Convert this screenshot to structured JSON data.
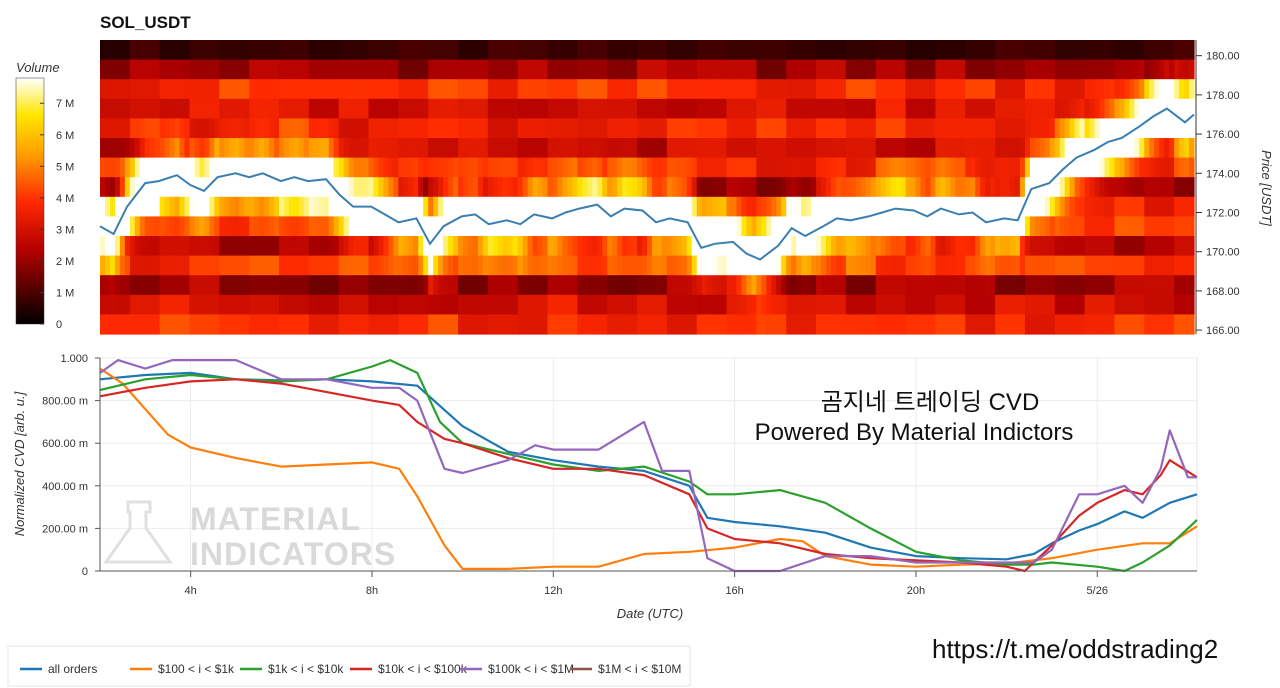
{
  "chart_data": [
    {
      "type": "heatmap",
      "title": "SOL_USDT",
      "colorbar": {
        "title": "Volume",
        "ticks": [
          "0",
          "1 M",
          "2 M",
          "3 M",
          "4 M",
          "5 M",
          "6 M",
          "7 M"
        ],
        "range": [
          0,
          7800000
        ]
      },
      "y_axis": {
        "label": "Price [USDT]",
        "range": [
          165.8,
          180.8
        ],
        "ticks": [
          "166.00",
          "168.00",
          "170.00",
          "172.00",
          "174.00",
          "176.00",
          "178.00",
          "180.00"
        ]
      },
      "x_range_hours": [
        2.0,
        26.2
      ],
      "price_series_name": "Price",
      "price_color": "#3a7fb0",
      "price_line": [
        [
          2.0,
          171.3
        ],
        [
          2.3,
          170.9
        ],
        [
          2.6,
          172.3
        ],
        [
          3.0,
          173.5
        ],
        [
          3.3,
          173.6
        ],
        [
          3.7,
          173.9
        ],
        [
          4.0,
          173.4
        ],
        [
          4.3,
          173.1
        ],
        [
          4.6,
          173.8
        ],
        [
          5.0,
          174.0
        ],
        [
          5.3,
          173.8
        ],
        [
          5.6,
          174.0
        ],
        [
          6.0,
          173.6
        ],
        [
          6.3,
          173.8
        ],
        [
          6.6,
          173.6
        ],
        [
          7.0,
          173.7
        ],
        [
          7.3,
          172.9
        ],
        [
          7.6,
          172.3
        ],
        [
          8.0,
          172.3
        ],
        [
          8.3,
          171.9
        ],
        [
          8.6,
          171.5
        ],
        [
          9.0,
          171.7
        ],
        [
          9.3,
          170.4
        ],
        [
          9.6,
          171.3
        ],
        [
          10.0,
          171.8
        ],
        [
          10.3,
          171.9
        ],
        [
          10.6,
          171.4
        ],
        [
          11.0,
          171.6
        ],
        [
          11.3,
          171.4
        ],
        [
          11.6,
          171.9
        ],
        [
          12.0,
          171.7
        ],
        [
          12.3,
          172.0
        ],
        [
          12.6,
          172.2
        ],
        [
          13.0,
          172.4
        ],
        [
          13.3,
          171.8
        ],
        [
          13.6,
          172.2
        ],
        [
          14.0,
          172.1
        ],
        [
          14.3,
          171.5
        ],
        [
          14.6,
          171.7
        ],
        [
          15.0,
          171.5
        ],
        [
          15.3,
          170.2
        ],
        [
          15.6,
          170.4
        ],
        [
          16.0,
          170.5
        ],
        [
          16.3,
          169.9
        ],
        [
          16.6,
          169.6
        ],
        [
          17.0,
          170.3
        ],
        [
          17.3,
          171.2
        ],
        [
          17.6,
          170.8
        ],
        [
          18.0,
          171.3
        ],
        [
          18.3,
          171.7
        ],
        [
          18.6,
          171.6
        ],
        [
          19.0,
          171.8
        ],
        [
          19.3,
          172.0
        ],
        [
          19.6,
          172.2
        ],
        [
          20.0,
          172.1
        ],
        [
          20.3,
          171.8
        ],
        [
          20.6,
          172.2
        ],
        [
          21.0,
          171.9
        ],
        [
          21.3,
          172.0
        ],
        [
          21.6,
          171.5
        ],
        [
          22.0,
          171.7
        ],
        [
          22.3,
          171.6
        ],
        [
          22.6,
          173.2
        ],
        [
          23.0,
          173.5
        ],
        [
          23.3,
          174.2
        ],
        [
          23.6,
          174.8
        ],
        [
          24.0,
          175.2
        ],
        [
          24.3,
          175.6
        ],
        [
          24.6,
          175.8
        ],
        [
          25.0,
          176.4
        ],
        [
          25.3,
          176.9
        ],
        [
          25.6,
          177.3
        ],
        [
          26.0,
          176.6
        ],
        [
          26.2,
          177.0
        ]
      ]
    },
    {
      "type": "line",
      "xlabel": "Date (UTC)",
      "ylabel": "Normalized CVD [arb. u.]",
      "ylim": [
        0,
        1000
      ],
      "y_ticks": [
        "0",
        "200.00 m",
        "400.00 m",
        "600.00 m",
        "800.00 m",
        "1.000"
      ],
      "x_ticks": [
        {
          "hour": 4,
          "label": "4h"
        },
        {
          "hour": 8,
          "label": "8h"
        },
        {
          "hour": 12,
          "label": "12h"
        },
        {
          "hour": 16,
          "label": "16h"
        },
        {
          "hour": 20,
          "label": "20h"
        },
        {
          "hour": 24,
          "label": "5/26"
        }
      ],
      "x_range_hours": [
        2.0,
        26.2
      ],
      "series": [
        {
          "name": "all orders",
          "color": "#1f77b4",
          "points": [
            [
              2.0,
              900
            ],
            [
              3.0,
              920
            ],
            [
              4.0,
              930
            ],
            [
              5.0,
              900
            ],
            [
              6.0,
              895
            ],
            [
              7.0,
              900
            ],
            [
              8.0,
              890
            ],
            [
              9.0,
              870
            ],
            [
              10.0,
              680
            ],
            [
              11.0,
              560
            ],
            [
              12.0,
              520
            ],
            [
              13.0,
              490
            ],
            [
              14.0,
              470
            ],
            [
              15.0,
              400
            ],
            [
              15.4,
              250
            ],
            [
              16.0,
              230
            ],
            [
              17.0,
              210
            ],
            [
              18.0,
              180
            ],
            [
              19.0,
              110
            ],
            [
              20.0,
              70
            ],
            [
              21.0,
              60
            ],
            [
              22.0,
              55
            ],
            [
              22.6,
              80
            ],
            [
              23.0,
              130
            ],
            [
              23.6,
              190
            ],
            [
              24.0,
              220
            ],
            [
              24.6,
              280
            ],
            [
              25.0,
              250
            ],
            [
              25.6,
              320
            ],
            [
              26.2,
              360
            ]
          ]
        },
        {
          "name": "$100 < i < $1k",
          "color": "#ff7f0e",
          "points": [
            [
              2.0,
              950
            ],
            [
              2.5,
              880
            ],
            [
              3.0,
              760
            ],
            [
              3.5,
              640
            ],
            [
              4.0,
              580
            ],
            [
              5.0,
              530
            ],
            [
              6.0,
              490
            ],
            [
              7.0,
              500
            ],
            [
              8.0,
              510
            ],
            [
              8.6,
              480
            ],
            [
              9.0,
              350
            ],
            [
              9.6,
              120
            ],
            [
              10.0,
              10
            ],
            [
              11.0,
              10
            ],
            [
              12.0,
              20
            ],
            [
              13.0,
              20
            ],
            [
              14.0,
              80
            ],
            [
              15.0,
              90
            ],
            [
              16.0,
              110
            ],
            [
              17.0,
              150
            ],
            [
              17.5,
              140
            ],
            [
              18.0,
              70
            ],
            [
              19.0,
              30
            ],
            [
              20.0,
              20
            ],
            [
              21.0,
              30
            ],
            [
              22.0,
              35
            ],
            [
              23.0,
              60
            ],
            [
              24.0,
              100
            ],
            [
              25.0,
              130
            ],
            [
              25.6,
              130
            ],
            [
              26.2,
              210
            ]
          ]
        },
        {
          "name": "$1k < i < $10k",
          "color": "#2ca02c",
          "points": [
            [
              2.0,
              850
            ],
            [
              3.0,
              900
            ],
            [
              4.0,
              920
            ],
            [
              5.0,
              900
            ],
            [
              6.0,
              890
            ],
            [
              7.0,
              900
            ],
            [
              8.0,
              960
            ],
            [
              8.4,
              990
            ],
            [
              9.0,
              930
            ],
            [
              9.5,
              700
            ],
            [
              10.0,
              600
            ],
            [
              11.0,
              550
            ],
            [
              12.0,
              500
            ],
            [
              13.0,
              470
            ],
            [
              14.0,
              490
            ],
            [
              15.0,
              420
            ],
            [
              15.4,
              360
            ],
            [
              16.0,
              360
            ],
            [
              17.0,
              380
            ],
            [
              18.0,
              320
            ],
            [
              19.0,
              200
            ],
            [
              20.0,
              90
            ],
            [
              21.0,
              50
            ],
            [
              22.0,
              30
            ],
            [
              22.6,
              30
            ],
            [
              23.0,
              40
            ],
            [
              24.0,
              20
            ],
            [
              24.6,
              0
            ],
            [
              25.0,
              40
            ],
            [
              25.6,
              120
            ],
            [
              26.2,
              240
            ]
          ]
        },
        {
          "name": "$10k < i < $100k",
          "color": "#d62728",
          "points": [
            [
              2.0,
              820
            ],
            [
              3.0,
              860
            ],
            [
              4.0,
              890
            ],
            [
              5.0,
              900
            ],
            [
              6.0,
              880
            ],
            [
              7.0,
              840
            ],
            [
              8.0,
              800
            ],
            [
              8.6,
              780
            ],
            [
              9.0,
              700
            ],
            [
              9.6,
              620
            ],
            [
              10.0,
              600
            ],
            [
              11.0,
              530
            ],
            [
              12.0,
              480
            ],
            [
              13.0,
              480
            ],
            [
              14.0,
              450
            ],
            [
              15.0,
              360
            ],
            [
              15.4,
              200
            ],
            [
              16.0,
              150
            ],
            [
              17.0,
              130
            ],
            [
              18.0,
              80
            ],
            [
              19.0,
              60
            ],
            [
              20.0,
              50
            ],
            [
              21.0,
              40
            ],
            [
              22.0,
              20
            ],
            [
              22.4,
              0
            ],
            [
              23.0,
              120
            ],
            [
              23.6,
              260
            ],
            [
              24.0,
              320
            ],
            [
              24.6,
              380
            ],
            [
              25.0,
              360
            ],
            [
              25.4,
              450
            ],
            [
              25.6,
              520
            ],
            [
              26.2,
              440
            ]
          ]
        },
        {
          "name": "$100k < i < $1M",
          "color": "#9467bd",
          "points": [
            [
              2.0,
              930
            ],
            [
              2.4,
              990
            ],
            [
              3.0,
              950
            ],
            [
              3.6,
              990
            ],
            [
              4.0,
              990
            ],
            [
              5.0,
              990
            ],
            [
              6.0,
              900
            ],
            [
              7.0,
              900
            ],
            [
              8.0,
              860
            ],
            [
              8.6,
              860
            ],
            [
              9.0,
              800
            ],
            [
              9.6,
              480
            ],
            [
              10.0,
              460
            ],
            [
              11.0,
              520
            ],
            [
              11.6,
              590
            ],
            [
              12.0,
              570
            ],
            [
              13.0,
              570
            ],
            [
              14.0,
              700
            ],
            [
              14.4,
              470
            ],
            [
              15.0,
              470
            ],
            [
              15.4,
              60
            ],
            [
              16.0,
              0
            ],
            [
              17.0,
              0
            ],
            [
              18.0,
              70
            ],
            [
              19.0,
              70
            ],
            [
              20.0,
              40
            ],
            [
              21.0,
              40
            ],
            [
              22.0,
              40
            ],
            [
              22.6,
              40
            ],
            [
              23.0,
              100
            ],
            [
              23.6,
              360
            ],
            [
              24.0,
              360
            ],
            [
              24.6,
              400
            ],
            [
              25.0,
              320
            ],
            [
              25.4,
              480
            ],
            [
              25.6,
              660
            ],
            [
              26.0,
              440
            ],
            [
              26.2,
              440
            ]
          ]
        }
      ]
    }
  ],
  "annotations": {
    "overlay_line1": "곰지네 트레이딩 CVD",
    "overlay_line2": "Powered By Material Indictors",
    "watermark_line1": "MATERIAL",
    "watermark_line2": "INDICATORS",
    "link": "https://t.me/oddstrading2"
  },
  "legend": {
    "items": [
      {
        "label": "all orders",
        "color": "#1f77b4"
      },
      {
        "label": "$100 < i < $1k",
        "color": "#ff7f0e"
      },
      {
        "label": "$1k < i < $10k",
        "color": "#2ca02c"
      },
      {
        "label": "$10k < i < $100k",
        "color": "#d62728"
      },
      {
        "label": "$100k < i < $1M",
        "color": "#9467bd"
      },
      {
        "label": "$1M < i < $10M",
        "color": "#8c564b"
      }
    ]
  }
}
